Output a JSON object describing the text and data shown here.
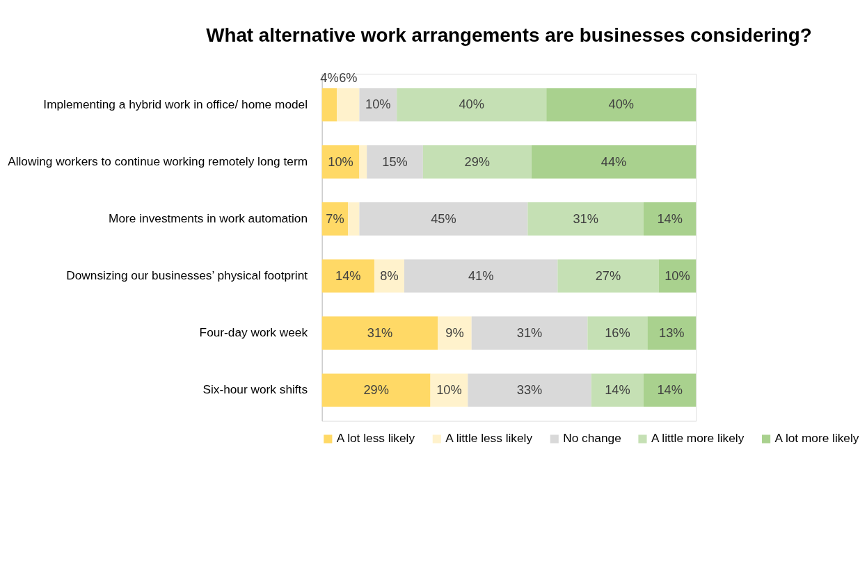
{
  "chart_data": {
    "type": "bar",
    "orientation": "horizontal",
    "stacked": true,
    "title": "What alternative work arrangements are businesses considering?",
    "categories": [
      "Implementing a hybrid work in office/ home model",
      "Allowing workers to continue working remotely long term",
      "More investments in work automation",
      "Downsizing our businesses’ physical footprint",
      "Four-day work week",
      "Six-hour work shifts"
    ],
    "xlim": [
      0,
      100
    ],
    "legend": "bottom",
    "series": [
      {
        "name": "A lot less likely",
        "color": "#ffd966",
        "values": [
          4,
          10,
          7,
          14,
          31,
          29
        ],
        "value_labels": [
          "4%",
          "10%",
          "7%",
          "14%",
          "31%",
          "29%"
        ]
      },
      {
        "name": "A little less likely",
        "color": "#fff2cc",
        "values": [
          6,
          2,
          3,
          8,
          9,
          10
        ],
        "value_labels": [
          "6%",
          null,
          null,
          "8%",
          "9%",
          "10%"
        ]
      },
      {
        "name": "No change",
        "color": "#d9d9d9",
        "values": [
          10,
          15,
          45,
          41,
          31,
          33
        ],
        "value_labels": [
          "10%",
          "15%",
          "45%",
          "41%",
          "31%",
          "33%"
        ]
      },
      {
        "name": "A little more likely",
        "color": "#c5e0b4",
        "values": [
          40,
          29,
          31,
          27,
          16,
          14
        ],
        "value_labels": [
          "40%",
          "29%",
          "31%",
          "27%",
          "16%",
          "14%"
        ]
      },
      {
        "name": "A lot more likely",
        "color": "#a9d18e",
        "values": [
          40,
          44,
          14,
          10,
          13,
          14
        ],
        "value_labels": [
          "40%",
          "44%",
          "14%",
          "10%",
          "13%",
          "14%"
        ]
      }
    ]
  }
}
